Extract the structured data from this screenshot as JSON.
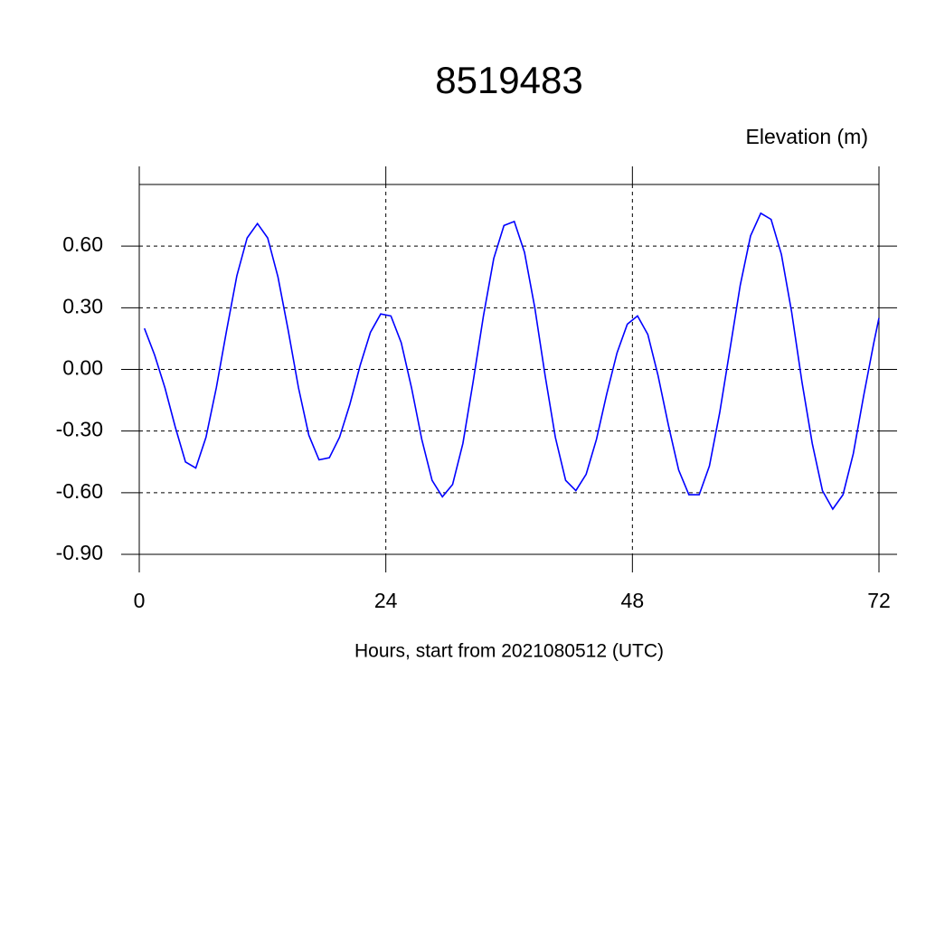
{
  "chart_data": {
    "type": "line",
    "title": "8519483",
    "subtitle": "Elevation (m)",
    "x_label": "Hours, start from 2021080512 (UTC)",
    "x": [
      0.5,
      1.5,
      2.5,
      3.5,
      4.5,
      5.5,
      6.5,
      7.5,
      8.5,
      9.5,
      10.5,
      11.5,
      12.5,
      13.5,
      14.5,
      15.5,
      16.5,
      17.5,
      18.5,
      19.5,
      20.5,
      21.5,
      22.5,
      23.5,
      24.5,
      25.5,
      26.5,
      27.5,
      28.5,
      29.5,
      30.5,
      31.5,
      32.5,
      33.5,
      34.5,
      35.5,
      36.5,
      37.5,
      38.5,
      39.5,
      40.5,
      41.5,
      42.5,
      43.5,
      44.5,
      45.5,
      46.5,
      47.5,
      48.5,
      49.5,
      50.5,
      51.5,
      52.5,
      53.5,
      54.5,
      55.5,
      56.5,
      57.5,
      58.5,
      59.5,
      60.5,
      61.5,
      62.5,
      63.5,
      64.5,
      65.5,
      66.5,
      67.5,
      68.5,
      69.5,
      70.5,
      71.5,
      72
    ],
    "series": [
      {
        "name": "Elevation",
        "color": "#0000ff",
        "values": [
          0.2,
          0.07,
          -0.09,
          -0.28,
          -0.45,
          -0.48,
          -0.33,
          -0.09,
          0.19,
          0.455,
          0.64,
          0.71,
          0.64,
          0.45,
          0.19,
          -0.09,
          -0.32,
          -0.44,
          -0.43,
          -0.33,
          -0.17,
          0.02,
          0.18,
          0.27,
          0.26,
          0.13,
          -0.09,
          -0.34,
          -0.54,
          -0.62,
          -0.56,
          -0.36,
          -0.06,
          0.26,
          0.54,
          0.7,
          0.72,
          0.57,
          0.3,
          -0.03,
          -0.33,
          -0.54,
          -0.59,
          -0.51,
          -0.34,
          -0.12,
          0.08,
          0.22,
          0.26,
          0.17,
          -0.03,
          -0.27,
          -0.49,
          -0.61,
          -0.61,
          -0.47,
          -0.21,
          0.1,
          0.41,
          0.65,
          0.76,
          0.73,
          0.56,
          0.28,
          -0.06,
          -0.36,
          -0.59,
          -0.68,
          -0.61,
          -0.41,
          -0.13,
          0.13,
          0.25
        ]
      }
    ],
    "xlim": [
      0,
      72
    ],
    "xticks": [
      0,
      24,
      48,
      72
    ],
    "ylim": [
      -0.9,
      0.9
    ],
    "yticks": [
      {
        "value": -0.9,
        "label": "-0.90"
      },
      {
        "value": -0.6,
        "label": "-0.60"
      },
      {
        "value": -0.3,
        "label": "-0.30"
      },
      {
        "value": 0,
        "label": "0.00"
      },
      {
        "value": 0.3,
        "label": "0.30"
      },
      {
        "value": 0.6,
        "label": "0.60"
      }
    ],
    "grid": true
  }
}
